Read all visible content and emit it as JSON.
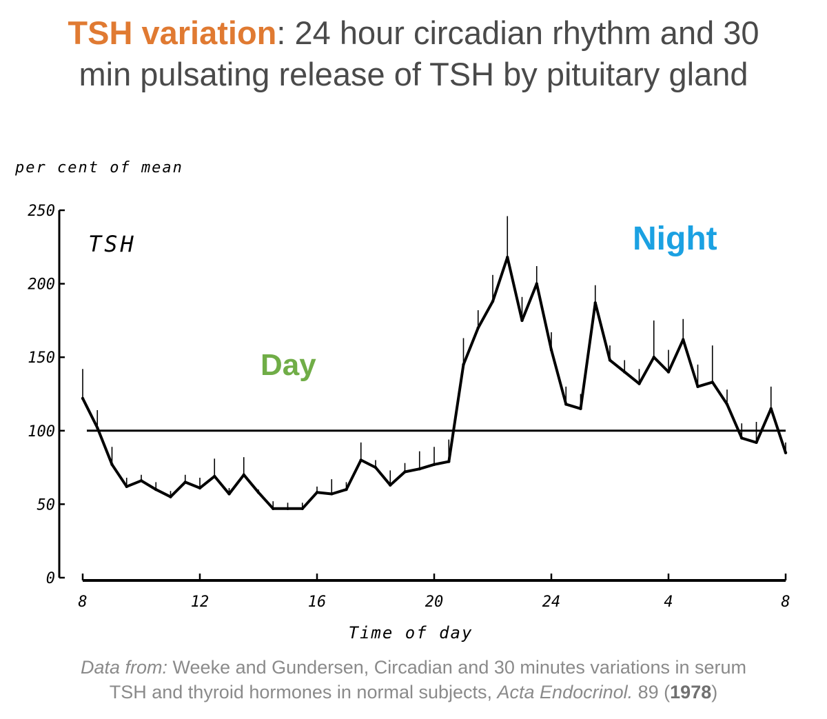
{
  "title": {
    "highlight": "TSH variation",
    "line1_rest": ": 24 hour circadian rhythm and 30",
    "line2": "min pulsating release of TSH by pituitary gland"
  },
  "colors": {
    "highlight": "#e07a32",
    "day": "#70ad47",
    "night": "#1ba1e2",
    "ink": "#000000",
    "title_text": "#4a4a4a",
    "citation": "#8a8a8a"
  },
  "chart_data": {
    "type": "line",
    "ylabel": "per cent of mean",
    "xlabel": "Time of day",
    "series_label": "TSH",
    "y_ticks": [
      "0",
      "50",
      "100",
      "150",
      "200",
      "250"
    ],
    "x_ticks": [
      "8",
      "12",
      "16",
      "20",
      "24",
      "4",
      "8"
    ],
    "ylim": [
      0,
      250
    ],
    "xlim": [
      8,
      32
    ],
    "reference_line": 100,
    "annotations": {
      "day": "Day",
      "night": "Night"
    },
    "series": [
      {
        "x": [
          8.0,
          8.5,
          9.0,
          9.5,
          10.0,
          10.5,
          11.0,
          11.5,
          12.0,
          12.5,
          13.0,
          13.5,
          14.0,
          14.5,
          15.0,
          15.5,
          16.0,
          16.5,
          17.0,
          17.5,
          18.0,
          18.5,
          19.0,
          19.5,
          20.0,
          20.5,
          21.0,
          21.5,
          22.0,
          22.5,
          23.0,
          23.5,
          24.0,
          24.5,
          25.0,
          25.5,
          26.0,
          26.5,
          27.0,
          27.5,
          28.0,
          28.5,
          29.0,
          29.5,
          30.0,
          30.5,
          31.0,
          31.5,
          32.0
        ],
        "values": [
          122,
          102,
          77,
          62,
          66,
          60,
          55,
          65,
          61,
          69,
          57,
          70,
          58,
          47,
          47,
          47,
          58,
          57,
          60,
          80,
          75,
          63,
          72,
          74,
          77,
          79,
          145,
          170,
          188,
          218,
          175,
          200,
          155,
          118,
          115,
          187,
          148,
          140,
          132,
          150,
          140,
          162,
          130,
          133,
          118,
          95,
          92,
          115,
          85
        ],
        "error_bars": [
          20,
          12,
          12,
          6,
          4,
          5,
          4,
          5,
          7,
          12,
          4,
          12,
          2,
          5,
          4,
          4,
          4,
          10,
          5,
          12,
          5,
          10,
          6,
          12,
          12,
          15,
          18,
          12,
          18,
          28,
          16,
          12,
          12,
          12,
          10,
          12,
          10,
          8,
          10,
          25,
          15,
          14,
          15,
          25,
          10,
          10,
          14,
          15,
          7
        ]
      }
    ]
  },
  "citation": {
    "prefix": "Data from:",
    "line1_rest": " Weeke and Gundersen, Circadian and 30 minutes variations in serum",
    "line2_start": "TSH and thyroid hormones in normal subjects, ",
    "journal": "Acta Endocrinol.",
    "volume": " 89 (",
    "year": "1978",
    "close": ")"
  }
}
